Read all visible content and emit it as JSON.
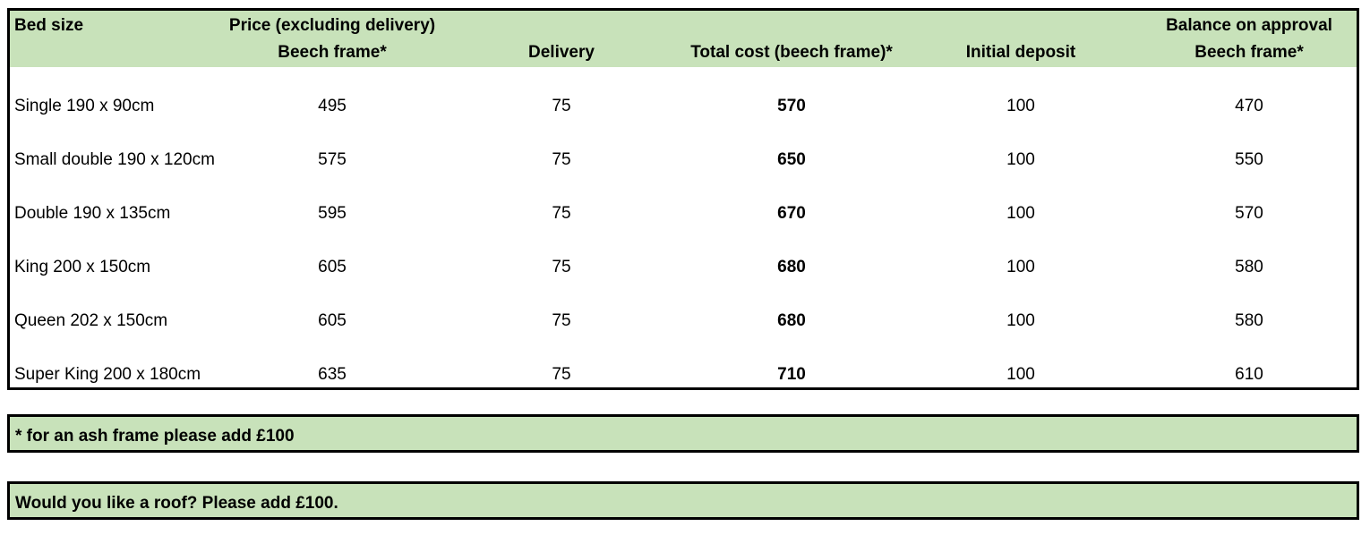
{
  "header": {
    "bed_size": "Bed size",
    "price_line1": "Price (excluding delivery)",
    "price_line2": "Beech frame*",
    "delivery": "Delivery",
    "total_cost": "Total cost (beech frame)*",
    "initial_deposit": "Initial deposit",
    "balance_line1": "Balance on approval",
    "balance_line2": "Beech frame*"
  },
  "rows": [
    {
      "size": "Single 190 x 90cm",
      "price": "495",
      "delivery": "75",
      "total": "570",
      "deposit": "100",
      "balance": "470"
    },
    {
      "size": "Small double 190 x 120cm",
      "price": "575",
      "delivery": "75",
      "total": "650",
      "deposit": "100",
      "balance": "550"
    },
    {
      "size": "Double 190 x 135cm",
      "price": "595",
      "delivery": "75",
      "total": "670",
      "deposit": "100",
      "balance": "570"
    },
    {
      "size": "King 200 x 150cm",
      "price": "605",
      "delivery": "75",
      "total": "680",
      "deposit": "100",
      "balance": "580"
    },
    {
      "size": "Queen 202 x 150cm",
      "price": "605",
      "delivery": "75",
      "total": "680",
      "deposit": "100",
      "balance": "580"
    },
    {
      "size": "Super King 200 x 180cm",
      "price": "635",
      "delivery": "75",
      "total": "710",
      "deposit": "100",
      "balance": "610"
    }
  ],
  "notes": {
    "ash_frame": "* for an ash frame please add £100",
    "roof": "Would you like a roof? Please add £100."
  },
  "colors": {
    "header_fill": "#c8e2ba",
    "border": "#000000"
  }
}
